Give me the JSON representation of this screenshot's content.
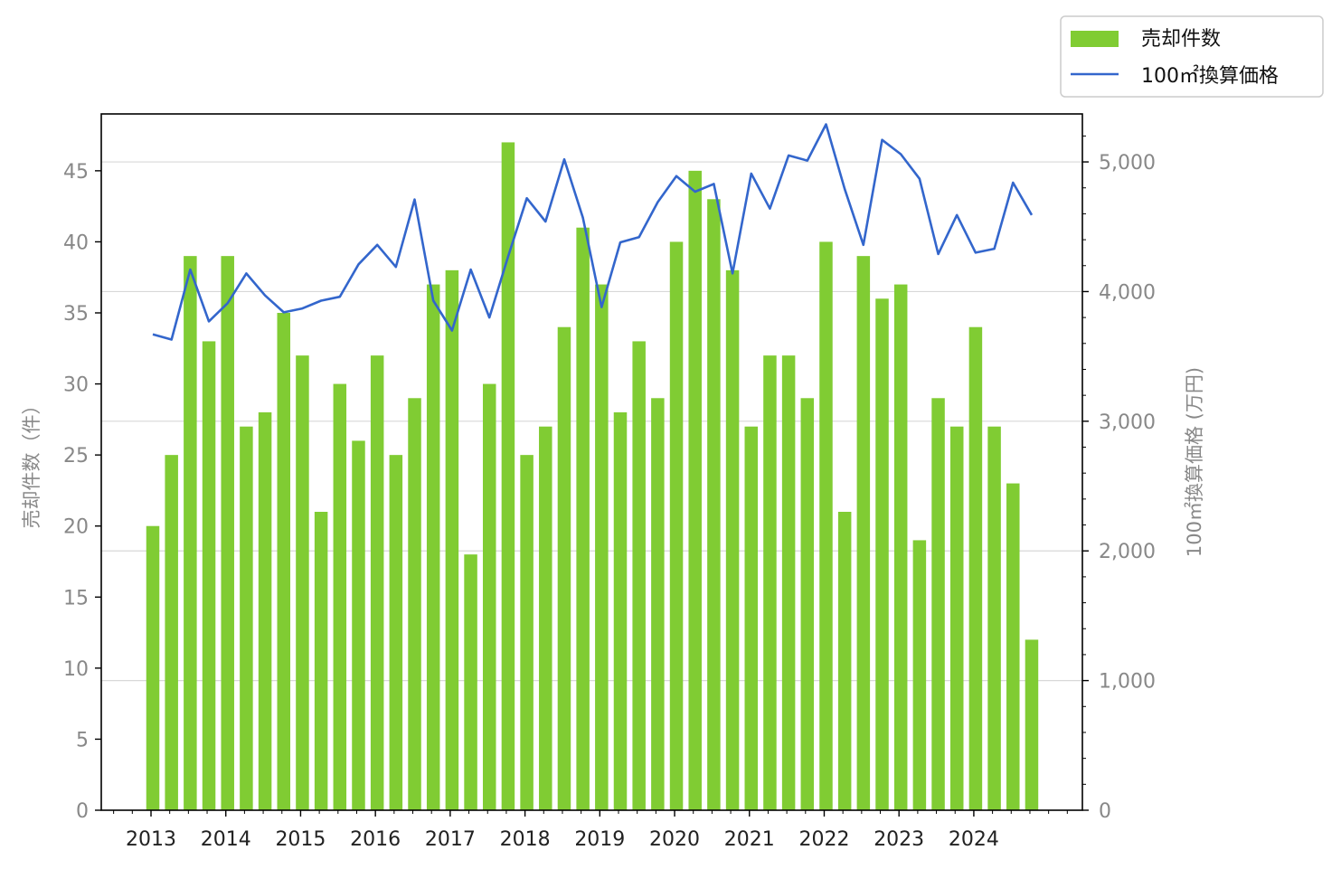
{
  "chart_data": {
    "type": "bar+line",
    "x_tick_labels": [
      "2013",
      "2014",
      "2015",
      "2016",
      "2017",
      "2018",
      "2019",
      "2020",
      "2021",
      "2022",
      "2023",
      "2024"
    ],
    "left_axis": {
      "label": "売却件数（件）",
      "ticks": [
        0,
        5,
        10,
        15,
        20,
        25,
        30,
        35,
        40,
        45
      ],
      "ylim": [
        0,
        49
      ]
    },
    "right_axis": {
      "label": "100㎡換算価格 (万円)",
      "ticks": [
        "0",
        "1,000",
        "2,000",
        "3,000",
        "4,000",
        "5,000"
      ],
      "tick_values": [
        0,
        1000,
        2000,
        3000,
        4000,
        5000
      ],
      "ylim": [
        0,
        5370
      ]
    },
    "grid": "horizontal",
    "legend_position": "top-right",
    "series": [
      {
        "name": "売却件数",
        "type": "bar",
        "axis": "left",
        "color": "#80cc33",
        "values": [
          20,
          25,
          39,
          33,
          39,
          27,
          28,
          35,
          32,
          21,
          30,
          26,
          32,
          25,
          29,
          37,
          38,
          18,
          30,
          47,
          25,
          27,
          34,
          41,
          37,
          28,
          33,
          29,
          40,
          45,
          43,
          38,
          27,
          32,
          32,
          29,
          40,
          21,
          39,
          36,
          37,
          19,
          29,
          27,
          34,
          27,
          23,
          12
        ]
      },
      {
        "name": "100㎡換算価格",
        "type": "line",
        "axis": "right",
        "color": "#3366cc",
        "values": [
          3670,
          3630,
          4170,
          3770,
          3910,
          4140,
          3970,
          3840,
          3870,
          3930,
          3960,
          4210,
          4360,
          4190,
          4710,
          3930,
          3700,
          4170,
          3800,
          4270,
          4720,
          4540,
          5020,
          4570,
          3880,
          4380,
          4420,
          4690,
          4890,
          4770,
          4830,
          4140,
          4910,
          4640,
          5050,
          5010,
          5290,
          4790,
          4360,
          5170,
          5060,
          4870,
          4290,
          4590,
          4300,
          4330,
          4840,
          4590
        ]
      }
    ]
  }
}
